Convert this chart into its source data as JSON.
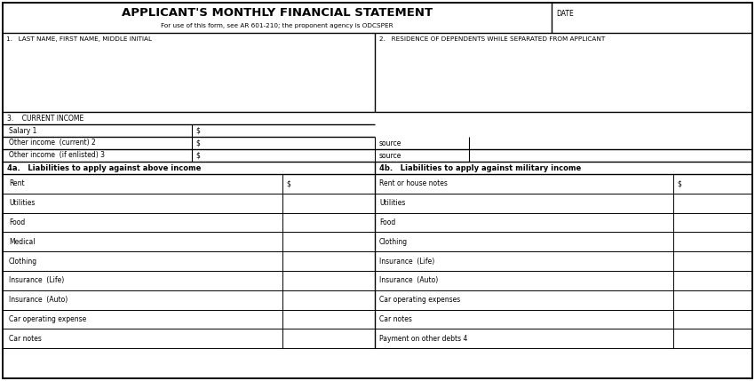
{
  "title": "APPLICANT'S MONTHLY FINANCIAL STATEMENT",
  "subtitle": "For use of this form, see AR 601-210; the proponent agency is ODCSPER",
  "date_label": "DATE",
  "field1_label": "1.   LAST NAME, FIRST NAME, MIDDLE INITIAL",
  "field2_label": "2.   RESIDENCE OF DEPENDENTS WHILE SEPARATED FROM APPLICANT",
  "field3_label": "3.    CURRENT INCOME",
  "salary_label": "Salary 1",
  "dollar_sign": "$",
  "other_income_current": "Other income  (current) 2",
  "other_income_enlisted": "Other income  (if enlisted) 3",
  "source_label": "source",
  "section4a_label": "4a.   Liabilities to apply against above income",
  "section4b_label": "4b.   Liabilities to apply against military income",
  "left_items": [
    "Rent",
    "Utilities",
    "Food",
    "Medical",
    "Clothing",
    "Insurance  (Life)",
    "Insurance  (Auto)",
    "Car operating expense",
    "Car notes"
  ],
  "right_items": [
    "Rent or house notes",
    "Utilities",
    "Food",
    "Clothing",
    "Insurance  (Life)",
    "Insurance  (Auto)",
    "Car operating expenses",
    "Car notes",
    "Payment on other debts 4"
  ],
  "bg_color": "#ffffff",
  "border_color": "#000000"
}
